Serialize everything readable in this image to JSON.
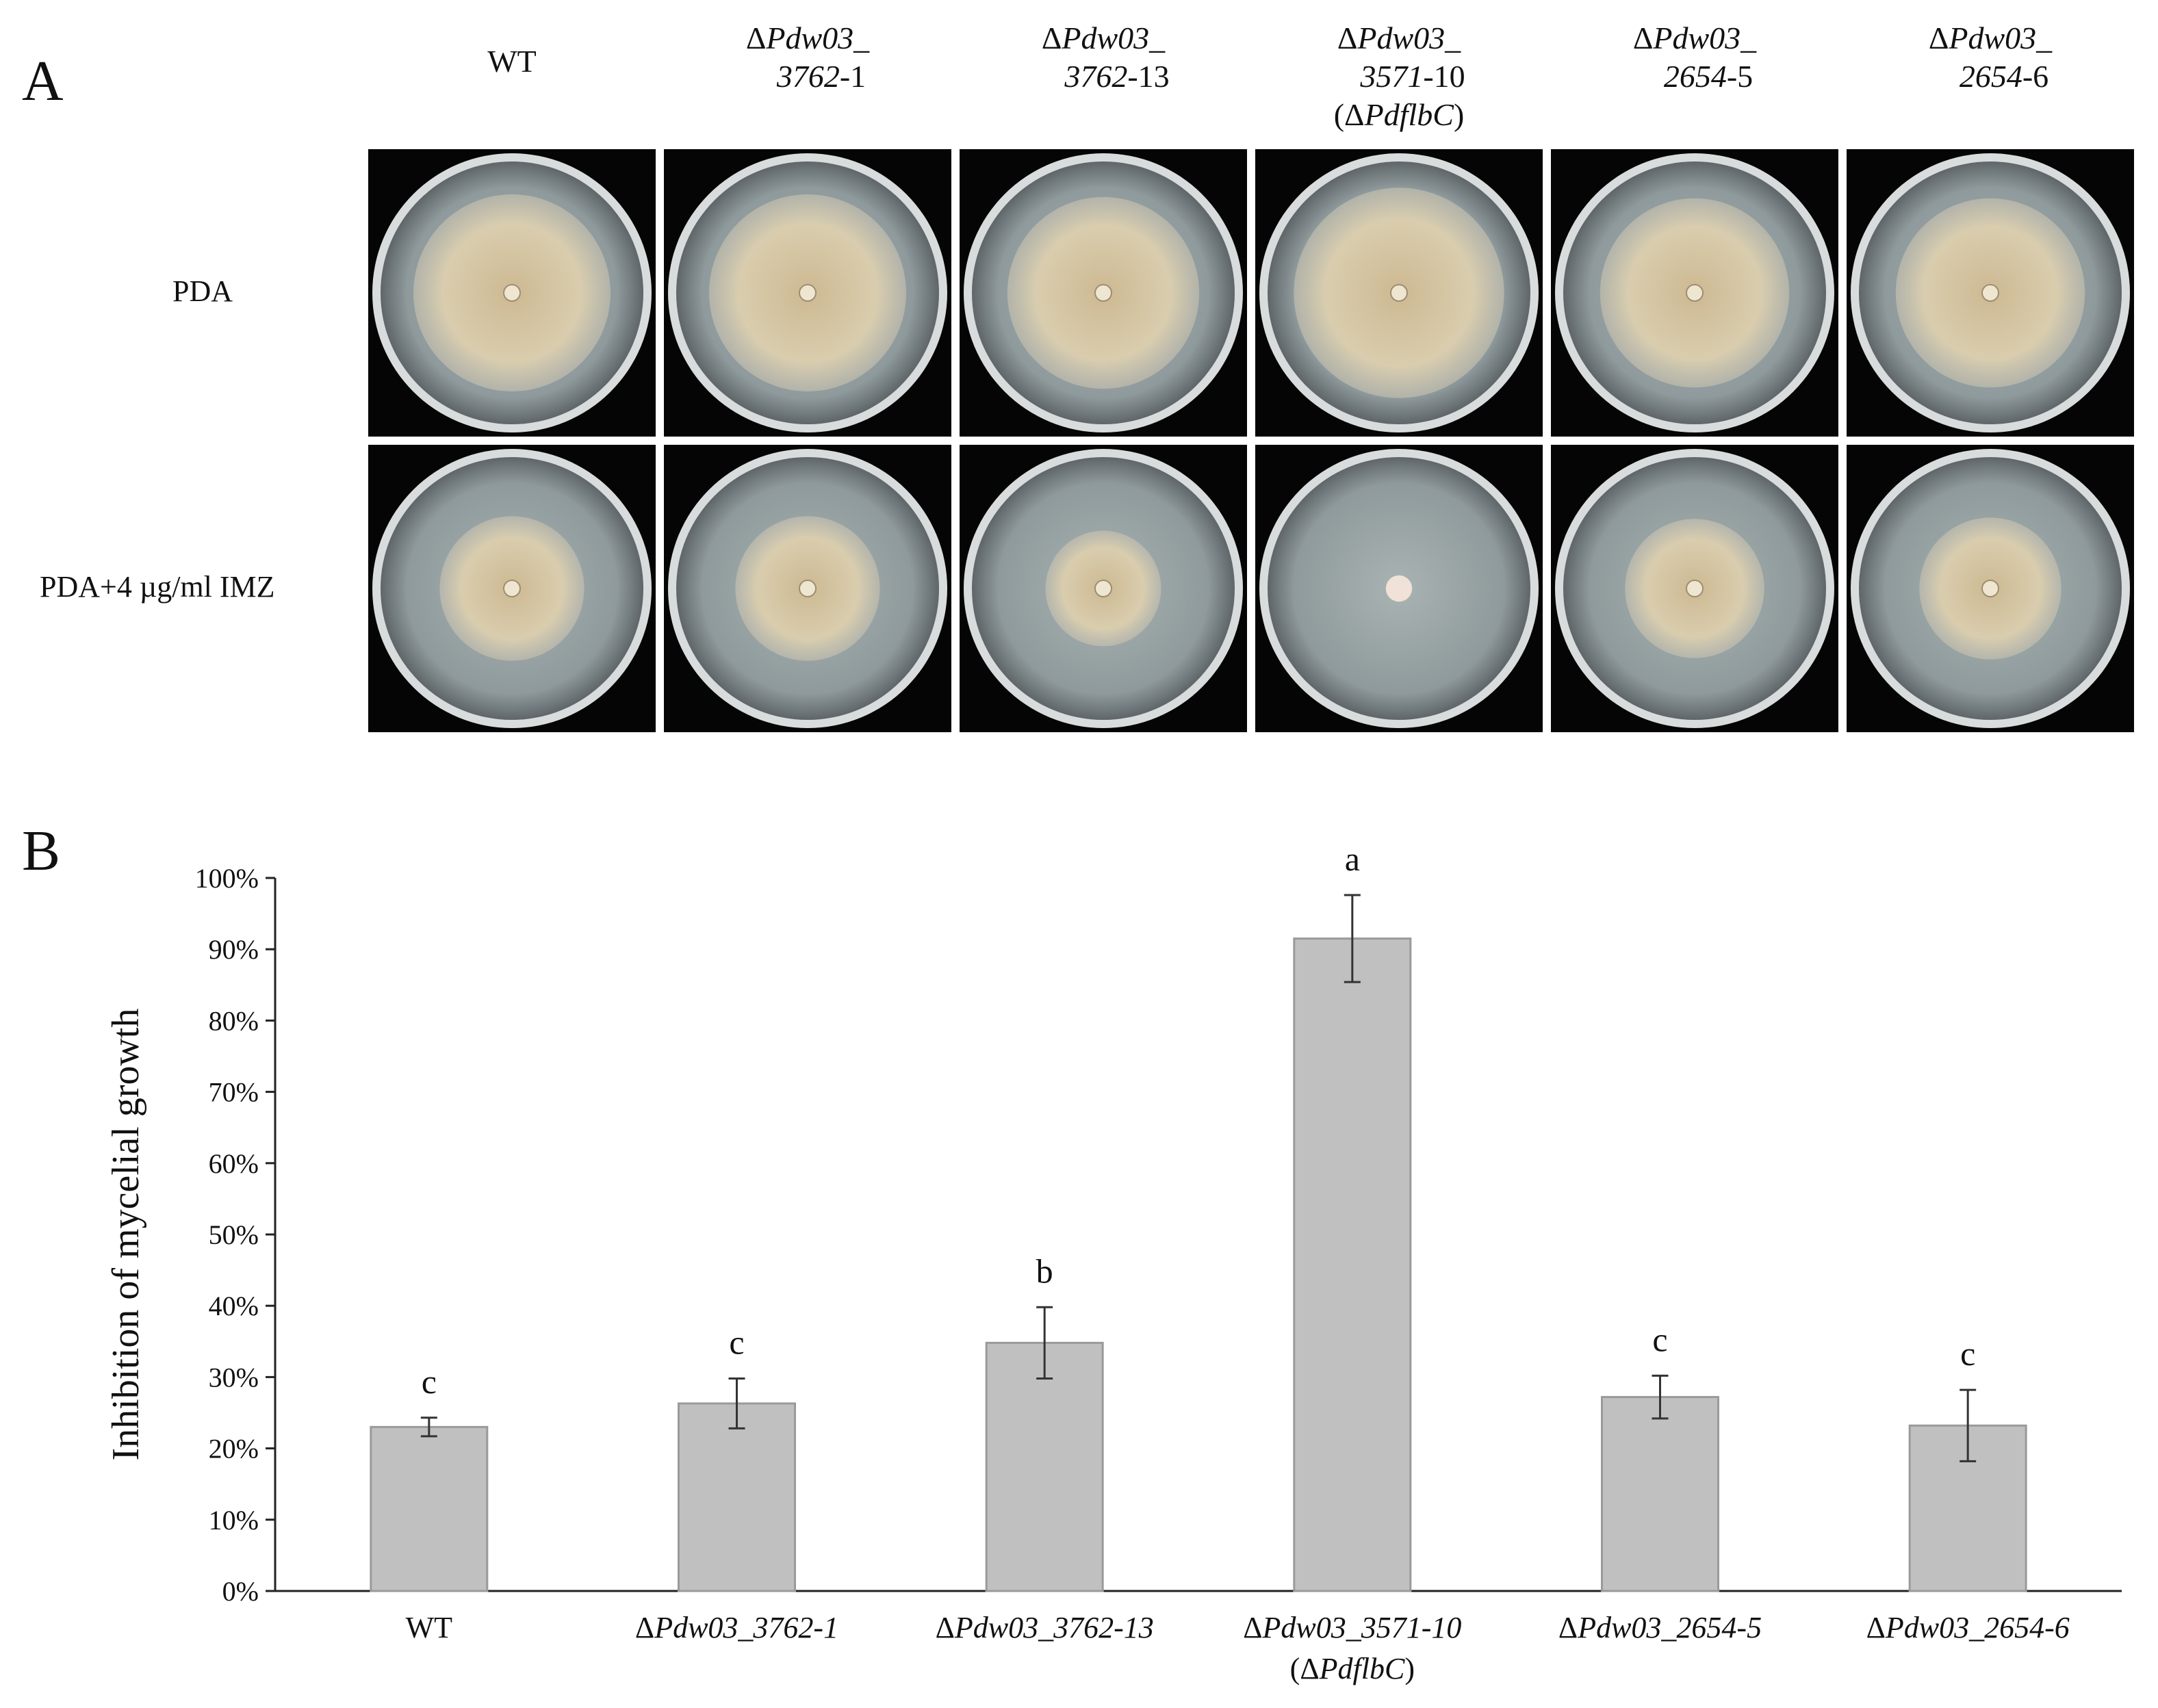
{
  "panel_a": {
    "letter": "A",
    "columns": [
      {
        "line1": "WT",
        "line2": "",
        "line3": ""
      },
      {
        "line1": "ΔPdw03_",
        "line2": "3762-1",
        "line3": ""
      },
      {
        "line1": "ΔPdw03_",
        "line2": "3762-13",
        "line3": ""
      },
      {
        "line1": "ΔPdw03_",
        "line2": "3571-10",
        "line3": "(ΔPdflbC)"
      },
      {
        "line1": "ΔPdw03_",
        "line2": "2654-5",
        "line3": ""
      },
      {
        "line1": "ΔPdw03_",
        "line2": "2654-6",
        "line3": ""
      }
    ],
    "rows": [
      {
        "label": "PDA",
        "colony_fraction": [
          0.75,
          0.75,
          0.73,
          0.8,
          0.72,
          0.72
        ]
      },
      {
        "label": "PDA+4 µg/ml IMZ",
        "colony_fraction": [
          0.55,
          0.55,
          0.44,
          0.1,
          0.53,
          0.54
        ]
      }
    ],
    "colors": {
      "background": "#050505",
      "agar": "#b7c0bc",
      "colony": "#d6c8a6"
    }
  },
  "chart_data": {
    "type": "bar",
    "panel_letter": "B",
    "categories": [
      "WT",
      "ΔPdw03_3762-1",
      "ΔPdw03_3762-13",
      "ΔPdw03_3571-10",
      "ΔPdw03_2654-5",
      "ΔPdw03_2654-6"
    ],
    "category_sublabels": [
      "",
      "",
      "",
      "(ΔPdflbC)",
      "",
      ""
    ],
    "values": [
      23,
      26.3,
      34.8,
      91.5,
      27.2,
      23.2
    ],
    "errors": [
      1.3,
      3.5,
      5.0,
      6.1,
      3.0,
      5.0
    ],
    "significance": [
      "c",
      "c",
      "b",
      "a",
      "c",
      "c"
    ],
    "ylabel": "Inhibition of mycelial growth",
    "xlabel": "",
    "ylim": [
      0,
      100
    ],
    "yticks": [
      0,
      10,
      20,
      30,
      40,
      50,
      60,
      70,
      80,
      90,
      100
    ],
    "ytick_suffix": "%",
    "grid": false,
    "legend": "none",
    "bar_color": "#c0c0c0",
    "bar_edge_color": "#9a9a9a"
  }
}
